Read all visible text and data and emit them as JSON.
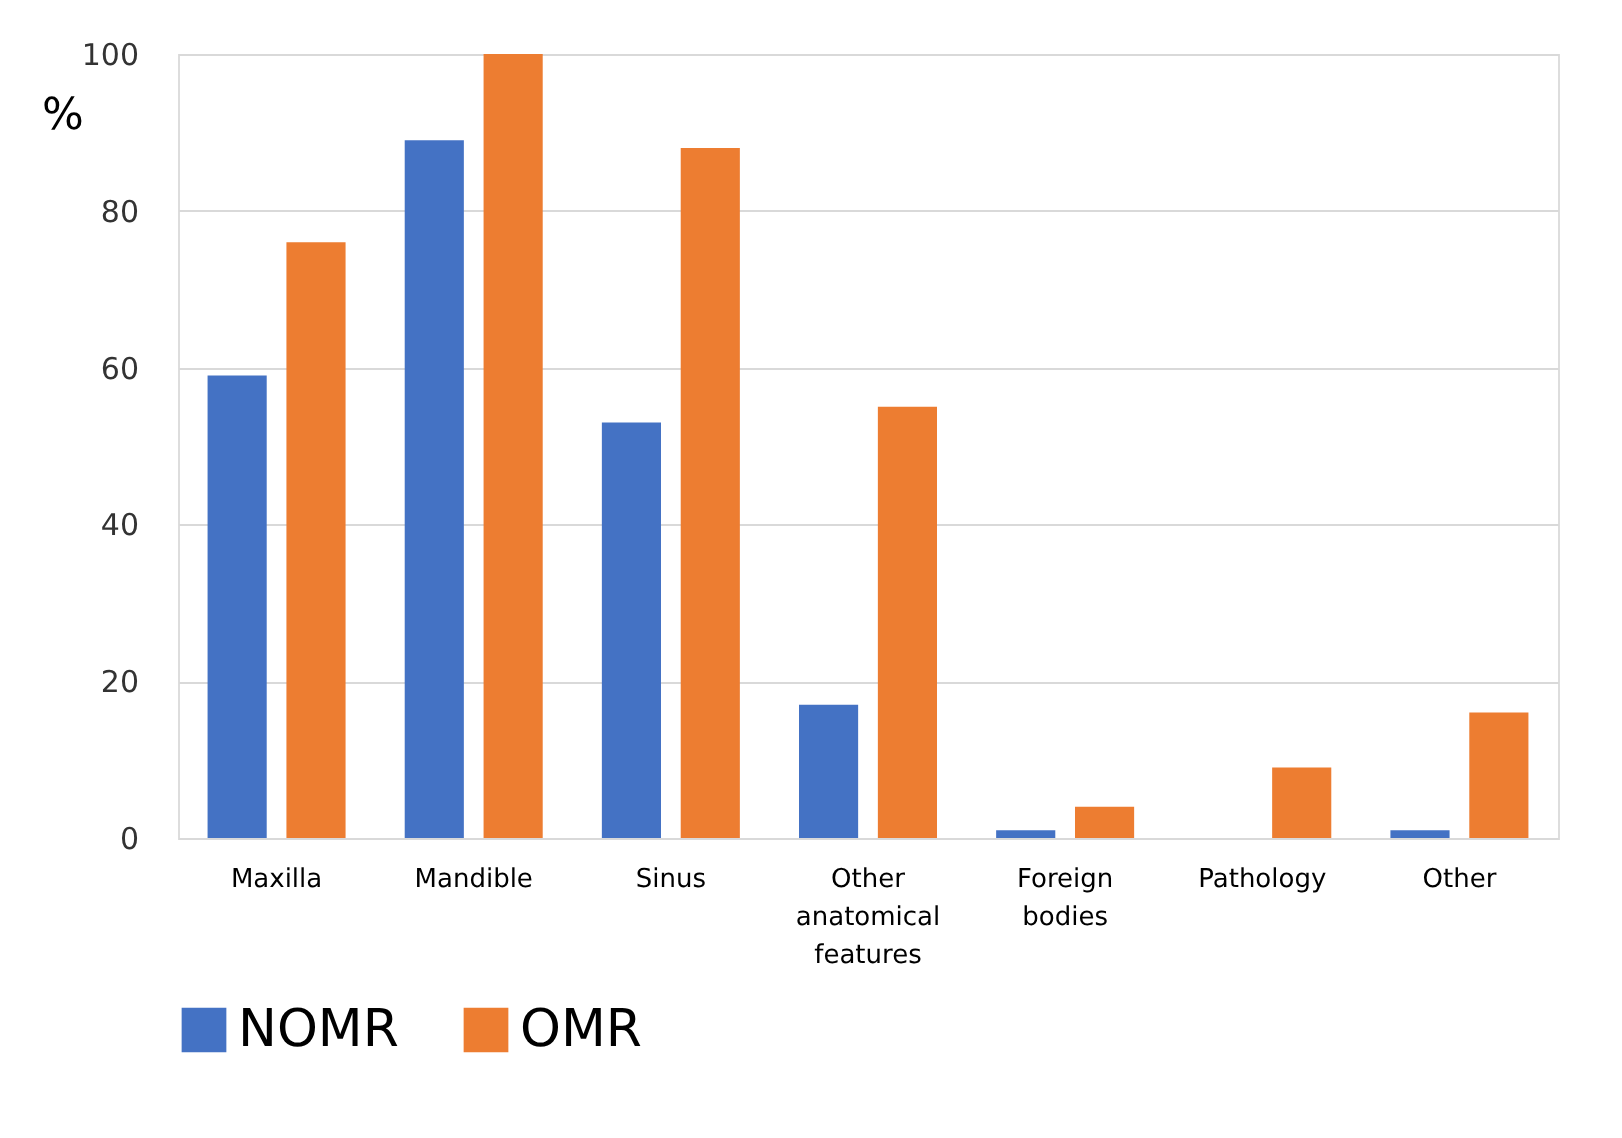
{
  "chart_data": {
    "type": "bar",
    "ylabel": "%",
    "categories": [
      "Maxilla",
      "Mandible",
      "Sinus",
      "Other anatomical features",
      "Foreign bodies",
      "Pathology",
      "Other"
    ],
    "series": [
      {
        "name": "NOMR",
        "color": "#4472c4",
        "values": [
          59,
          89,
          53,
          17,
          1,
          0,
          1
        ]
      },
      {
        "name": "OMR",
        "color": "#ed7d31",
        "values": [
          76,
          100,
          88,
          55,
          4,
          9,
          16
        ]
      }
    ],
    "ylim": [
      0,
      100
    ],
    "yticks": [
      0,
      20,
      40,
      60,
      80,
      100
    ],
    "grid": "y",
    "legend": "bottom"
  }
}
